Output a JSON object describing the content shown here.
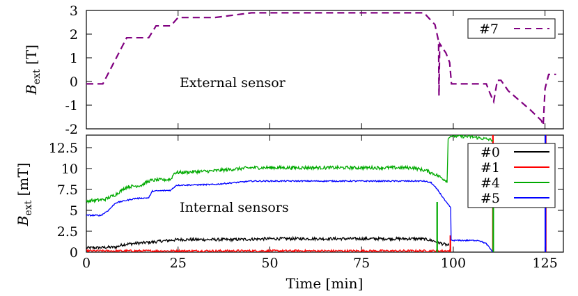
{
  "chart_data": [
    {
      "type": "line",
      "ylabel": "B",
      "ylabel_sub": "ext",
      "ylabel_unit": " [T]",
      "ylim": [
        -2,
        3
      ],
      "xlim": [
        0,
        130
      ],
      "yticks": [
        "-2",
        "-1",
        "0",
        "1",
        "2",
        "3"
      ],
      "annotation": "External sensor",
      "legend_position": "top-right",
      "series": [
        {
          "name": "#7",
          "color": "#800080",
          "dashed": true,
          "x": [
            0,
            4.5,
            11,
            15,
            17,
            19,
            23,
            25,
            35,
            45,
            60,
            92,
            95,
            96,
            96.1,
            96.3,
            98,
            99,
            99.5,
            101,
            104,
            108,
            109,
            110,
            111,
            112,
            113,
            115,
            118,
            121,
            124,
            124.5,
            125,
            126,
            127,
            128
          ],
          "y": [
            -0.1,
            -0.1,
            1.85,
            1.85,
            1.85,
            2.35,
            2.35,
            2.7,
            2.7,
            2.9,
            2.9,
            2.9,
            2.4,
            1.7,
            -0.6,
            1.6,
            1.2,
            0.8,
            -0.1,
            -0.1,
            -0.1,
            -0.1,
            -0.1,
            -0.5,
            -0.85,
            0.05,
            0.05,
            -0.4,
            -0.8,
            -1.2,
            -1.65,
            -1.85,
            -0.3,
            0.3,
            0.3,
            0.3
          ]
        }
      ]
    },
    {
      "type": "line",
      "xlabel": "Time [min]",
      "ylabel": "B",
      "ylabel_sub": "ext",
      "ylabel_unit": " [mT]",
      "ylim": [
        0,
        14
      ],
      "xlim": [
        0,
        130
      ],
      "xticks": [
        "0",
        "25",
        "50",
        "75",
        "100",
        "125"
      ],
      "yticks": [
        "0",
        "2.5",
        "5",
        "7.5",
        "10",
        "12.5"
      ],
      "annotation": "Internal sensors",
      "legend_position": "top-right",
      "series": [
        {
          "name": "#0",
          "color": "#000000",
          "noise": 0.35,
          "x": [
            0,
            8,
            10,
            12,
            18,
            20,
            25,
            40,
            50,
            91,
            93,
            95,
            97,
            98.8
          ],
          "y": [
            0.5,
            0.6,
            0.9,
            1.0,
            1.2,
            1.3,
            1.5,
            1.5,
            1.6,
            1.6,
            1.5,
            1.3,
            1.0,
            0.8
          ]
        },
        {
          "name": "#1",
          "color": "#ff0000",
          "noise": 0.25,
          "spikes": [
            [
              99.2,
              0,
              2
            ],
            [
              110.8,
              0,
              14
            ],
            [
              125.2,
              0,
              14
            ]
          ],
          "x": [
            0,
            98.8,
            99.2
          ],
          "y": [
            0.15,
            0.15,
            0.15
          ]
        },
        {
          "name": "#4",
          "color": "#00aa00",
          "noise": 0.4,
          "spikes": [
            [
              95.6,
              0,
              6
            ],
            [
              110.9,
              0,
              13
            ]
          ],
          "x": [
            0,
            5,
            8,
            11,
            15,
            17,
            18,
            23,
            24,
            34,
            45,
            89,
            93,
            96,
            98.3,
            98.6,
            99.0,
            105,
            108,
            110.8
          ],
          "y": [
            6.1,
            6.3,
            6.9,
            7.8,
            8.0,
            8.5,
            8.6,
            8.7,
            9.5,
            9.7,
            10.1,
            10.1,
            9.7,
            9.1,
            8.5,
            13.5,
            13.9,
            13.8,
            13.6,
            13.4
          ]
        },
        {
          "name": "#5",
          "color": "#0000ff",
          "noise": 0.15,
          "spikes": [
            [
              125.1,
              0,
              14
            ]
          ],
          "x": [
            0,
            4,
            6,
            8,
            11,
            13,
            17,
            18,
            23,
            24.5,
            35,
            45,
            92,
            94,
            96,
            98,
            99.3,
            99.4,
            107,
            109,
            110.8
          ],
          "y": [
            4.4,
            4.4,
            5.0,
            5.9,
            6.2,
            6.4,
            6.5,
            7.3,
            7.4,
            8.0,
            8.1,
            8.5,
            8.5,
            8.3,
            7.3,
            6.0,
            5.3,
            1.4,
            1.4,
            1.0,
            0.0
          ]
        }
      ]
    }
  ]
}
